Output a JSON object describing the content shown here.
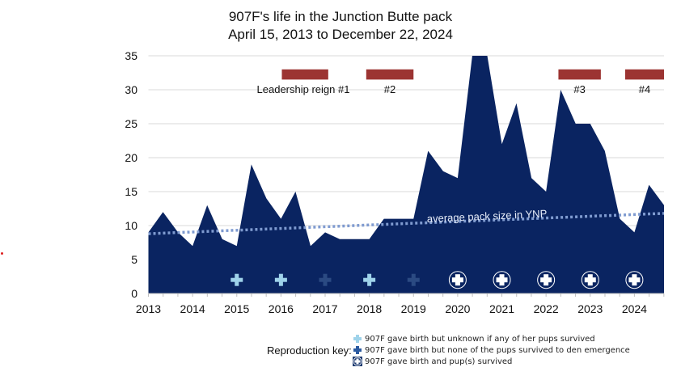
{
  "chart_data": {
    "type": "area",
    "title": "907F's life in the Junction Butte pack",
    "subtitle": "April 15, 2013 to December 22, 2024",
    "xlabel": "",
    "ylabel": "",
    "xlim": [
      2013,
      2024.67
    ],
    "ylim": [
      0,
      35
    ],
    "grid": true,
    "x_ticks": [
      "2013",
      "2014",
      "2015",
      "2016",
      "2017",
      "2018",
      "2019",
      "2020",
      "2021",
      "2022",
      "2023",
      "2024"
    ],
    "y_ticks": [
      "0",
      "5",
      "10",
      "15",
      "20",
      "25",
      "30",
      "35"
    ],
    "x": [
      2013.0,
      2013.33,
      2013.67,
      2014.0,
      2014.33,
      2014.67,
      2015.0,
      2015.33,
      2015.67,
      2016.0,
      2016.33,
      2016.67,
      2017.0,
      2017.33,
      2017.67,
      2018.0,
      2018.33,
      2018.67,
      2019.0,
      2019.33,
      2019.67,
      2020.0,
      2020.33,
      2020.67,
      2021.0,
      2021.33,
      2021.67,
      2022.0,
      2022.33,
      2022.67,
      2023.0,
      2023.33,
      2023.67,
      2024.0,
      2024.33,
      2024.67
    ],
    "values": [
      9,
      12,
      9,
      7,
      13,
      8,
      7,
      19,
      14,
      11,
      15,
      7,
      9,
      8,
      8,
      8,
      11,
      11,
      11,
      21,
      18,
      17,
      36,
      36,
      22,
      28,
      17,
      15,
      30,
      25,
      25,
      21,
      11,
      9,
      16,
      13
    ],
    "colors": {
      "area": "#0a2461",
      "reign": "#9c3432",
      "trend": "#7f9bd0",
      "light_cross": "#9fd3ea",
      "dark_cross": "#2b4a82"
    },
    "trend": {
      "label": "average pack size in YNP",
      "start": [
        2013.0,
        8.8
      ],
      "end": [
        2024.67,
        11.8
      ]
    },
    "reigns": [
      {
        "label": "Leadership reign #1",
        "start": 2016.02,
        "end": 2017.07,
        "y": 32
      },
      {
        "label": "#2",
        "start": 2017.93,
        "end": 2019.0,
        "y": 32
      },
      {
        "label": "#3",
        "start": 2022.28,
        "end": 2023.24,
        "y": 32
      },
      {
        "label": "#4",
        "start": 2023.79,
        "end": 2024.67,
        "y": 32
      }
    ],
    "reproduction": [
      {
        "year": 2015,
        "type": "unknown"
      },
      {
        "year": 2016,
        "type": "unknown"
      },
      {
        "year": 2017,
        "type": "none_survived"
      },
      {
        "year": 2018,
        "type": "unknown"
      },
      {
        "year": 2019,
        "type": "none_survived"
      },
      {
        "year": 2020,
        "type": "survived"
      },
      {
        "year": 2021,
        "type": "survived"
      },
      {
        "year": 2022,
        "type": "survived"
      },
      {
        "year": 2023,
        "type": "survived"
      },
      {
        "year": 2024,
        "type": "survived"
      }
    ],
    "legend": {
      "title": "Reproduction key:",
      "items": [
        {
          "type": "unknown",
          "label": "907F gave birth but unknown if any of her pups survived"
        },
        {
          "type": "none_survived",
          "label": "907F gave birth but none of the pups survived to den emergence"
        },
        {
          "type": "survived",
          "label": "907F gave birth and pup(s) survived"
        }
      ]
    }
  }
}
